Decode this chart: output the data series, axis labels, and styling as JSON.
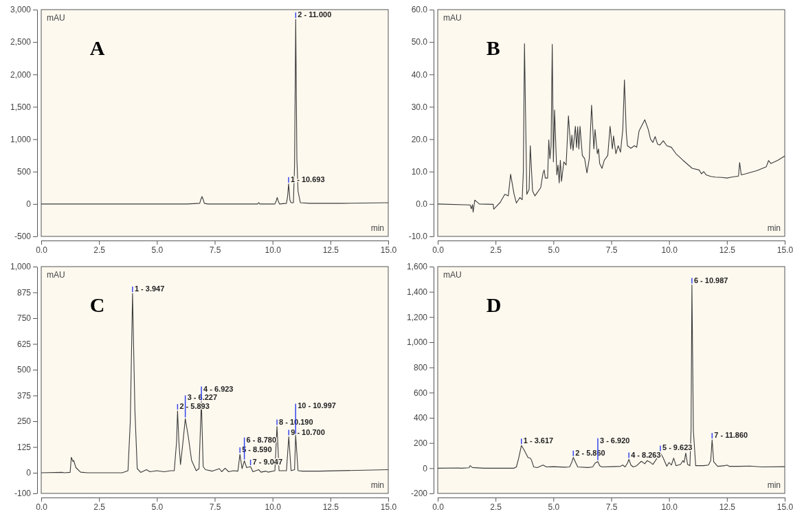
{
  "chart_data": [
    {
      "type": "line",
      "title": "A",
      "xlabel": "min",
      "ylabel": "mAU",
      "color": "#3a3a3a",
      "marker": "none",
      "grid": false,
      "x": [
        0,
        1,
        1.1,
        4,
        6.3,
        6.85,
        6.9,
        6.95,
        7.0,
        7.05,
        7.2,
        8.9,
        9.35,
        9.4,
        9.45,
        9.5,
        10.1,
        10.15,
        10.2,
        10.25,
        10.3,
        10.6,
        10.65,
        10.693,
        10.75,
        10.8,
        10.9,
        10.95,
        11.0,
        11.05,
        11.1,
        11.2,
        11.6,
        13,
        15
      ],
      "values": [
        0,
        0,
        0,
        0,
        0,
        10,
        70,
        115,
        70,
        10,
        0,
        0,
        0,
        20,
        0,
        0,
        0,
        40,
        100,
        40,
        0,
        10,
        120,
        310,
        60,
        20,
        20,
        600,
        2850,
        700,
        200,
        20,
        10,
        10,
        20
      ],
      "xlim": [
        0,
        15
      ],
      "ylim": [
        -500,
        3000
      ],
      "xticks": [
        {
          "value": 0,
          "label": "0.0"
        },
        {
          "value": 2.5,
          "label": "2.5"
        },
        {
          "value": 5,
          "label": "5.0"
        },
        {
          "value": 7.5,
          "label": "7.5"
        },
        {
          "value": 10,
          "label": "10.0"
        },
        {
          "value": 12.5,
          "label": "12.5"
        },
        {
          "value": 15,
          "label": "15.0"
        }
      ],
      "yticks": [
        -500,
        0,
        500,
        {
          "value": 1000,
          "label": "1,000"
        },
        {
          "value": 1500,
          "label": "1,500"
        },
        {
          "value": 2000,
          "label": "2,000"
        },
        {
          "value": 2500,
          "label": "2,500"
        },
        {
          "value": 3000,
          "label": "3,000"
        }
      ],
      "annotations": [
        {
          "text": "2 - 11.000",
          "x": 11.0,
          "y": 2850
        },
        {
          "text": "1 - 10.693",
          "x": 10.693,
          "y": 310
        }
      ]
    },
    {
      "type": "line",
      "title": "B",
      "xlabel": "min",
      "ylabel": "mAU",
      "color": "#3a3a3a",
      "marker": "none",
      "grid": false,
      "x": [
        0,
        1.4,
        1.45,
        1.5,
        1.53,
        1.6,
        1.8,
        2.4,
        2.42,
        2.5,
        2.7,
        2.9,
        3.05,
        3.15,
        3.3,
        3.4,
        3.55,
        3.65,
        3.7,
        3.75,
        3.85,
        3.95,
        4.0,
        4.1,
        4.2,
        4.3,
        4.45,
        4.55,
        4.6,
        4.65,
        4.75,
        4.8,
        4.85,
        4.9,
        4.95,
        5.0,
        5.05,
        5.15,
        5.2,
        5.25,
        5.3,
        5.35,
        5.45,
        5.55,
        5.65,
        5.75,
        5.8,
        5.85,
        5.95,
        6.0,
        6.05,
        6.1,
        6.15,
        6.25,
        6.35,
        6.45,
        6.55,
        6.65,
        6.75,
        6.8,
        6.9,
        6.95,
        7.0,
        7.1,
        7.2,
        7.35,
        7.45,
        7.55,
        7.6,
        7.7,
        7.8,
        7.9,
        8.0,
        8.07,
        8.15,
        8.2,
        8.35,
        8.5,
        8.6,
        8.7,
        8.95,
        9.1,
        9.2,
        9.3,
        9.4,
        9.5,
        9.6,
        9.75,
        9.9,
        10.1,
        10.3,
        10.6,
        11.0,
        11.3,
        11.4,
        11.5,
        11.6,
        11.8,
        12.0,
        12.3,
        12.5,
        12.7,
        13.0,
        13.05,
        13.12,
        13.3,
        13.8,
        14.2,
        14.3,
        14.4,
        14.7,
        15
      ],
      "values": [
        0,
        -0.3,
        -1.5,
        -0.2,
        -2.5,
        1.2,
        0,
        -0.1,
        -1.6,
        -1.0,
        0.5,
        3,
        2.5,
        9.2,
        3,
        0.3,
        2,
        1.3,
        10,
        49.5,
        3,
        4.5,
        18,
        4,
        2.5,
        3.5,
        5,
        9.5,
        10.5,
        8,
        8,
        19.8,
        14,
        18,
        49.3,
        13,
        29,
        9,
        12,
        6.5,
        13.5,
        7,
        13,
        12,
        27.2,
        17,
        21.3,
        16.5,
        24,
        17.5,
        23.8,
        17,
        24,
        15,
        14,
        9.6,
        14,
        30.5,
        17,
        23,
        15.5,
        17,
        12.5,
        11,
        13.5,
        15,
        24,
        17,
        21,
        15.5,
        18,
        16,
        23,
        38.3,
        22,
        18,
        17.2,
        18,
        17.5,
        22.5,
        26,
        23,
        20,
        19,
        20.8,
        18.5,
        18.2,
        19.5,
        18,
        17.5,
        15.5,
        13.5,
        11,
        10.5,
        9.3,
        10,
        9,
        8.5,
        8.3,
        8.2,
        8,
        8.3,
        8.6,
        12.8,
        9,
        9.3,
        10.3,
        11.5,
        13.4,
        12.5,
        13.5,
        14.8
      ],
      "xlim": [
        0,
        15
      ],
      "ylim": [
        -10,
        60
      ],
      "xticks": [
        {
          "value": 0,
          "label": "0.0"
        },
        {
          "value": 2.5,
          "label": "2.5"
        },
        {
          "value": 5,
          "label": "5.0"
        },
        {
          "value": 7.5,
          "label": "7.5"
        },
        {
          "value": 10,
          "label": "10.0"
        },
        {
          "value": 12.5,
          "label": "12.5"
        },
        {
          "value": 15,
          "label": "15.0"
        }
      ],
      "yticks": [
        {
          "value": -10,
          "label": "-10.0"
        },
        {
          "value": 0,
          "label": "0.0"
        },
        {
          "value": 10,
          "label": "10.0"
        },
        {
          "value": 20,
          "label": "20.0"
        },
        {
          "value": 30,
          "label": "30.0"
        },
        {
          "value": 40,
          "label": "40.0"
        },
        {
          "value": 50,
          "label": "50.0"
        },
        {
          "value": 60,
          "label": "60.0"
        }
      ]
    },
    {
      "type": "line",
      "title": "C",
      "xlabel": "min",
      "ylabel": "mAU",
      "color": "#3a3a3a",
      "marker": "none",
      "grid": false,
      "x": [
        0,
        0.9,
        1.0,
        1.25,
        1.3,
        1.37,
        1.4,
        1.5,
        1.7,
        2,
        3.5,
        3.75,
        3.85,
        3.947,
        4.05,
        4.15,
        4.3,
        4.55,
        4.7,
        5.0,
        5.3,
        5.6,
        5.75,
        5.85,
        5.893,
        5.95,
        6.02,
        6.1,
        6.227,
        6.35,
        6.5,
        6.7,
        6.82,
        6.923,
        7.0,
        7.1,
        7.4,
        7.7,
        7.8,
        7.95,
        8.1,
        8.3,
        8.5,
        8.59,
        8.68,
        8.78,
        8.88,
        9.047,
        9.15,
        9.4,
        9.5,
        9.7,
        9.8,
        10.1,
        10.19,
        10.28,
        10.6,
        10.7,
        10.8,
        10.95,
        10.997,
        11.1,
        11.3,
        12,
        15
      ],
      "values": [
        0,
        2,
        0,
        2,
        75,
        55,
        60,
        25,
        3,
        0,
        0,
        10,
        250,
        870,
        300,
        20,
        2,
        15,
        5,
        10,
        5,
        10,
        10,
        150,
        300,
        150,
        40,
        120,
        262,
        180,
        60,
        10,
        20,
        345,
        30,
        15,
        8,
        20,
        5,
        22,
        5,
        10,
        8,
        90,
        20,
        58,
        25,
        30,
        5,
        15,
        3,
        8,
        3,
        10,
        225,
        10,
        10,
        175,
        10,
        15,
        182,
        10,
        8,
        8,
        15
      ],
      "xlim": [
        0,
        15
      ],
      "ylim": [
        -100,
        1000
      ],
      "xticks": [
        {
          "value": 0,
          "label": "0.0"
        },
        {
          "value": 2.5,
          "label": "2.5"
        },
        {
          "value": 5,
          "label": "5.0"
        },
        {
          "value": 7.5,
          "label": "7.5"
        },
        {
          "value": 10,
          "label": "10.0"
        },
        {
          "value": 12.5,
          "label": "12.5"
        },
        {
          "value": 15,
          "label": "15.0"
        }
      ],
      "yticks": [
        -100,
        0,
        125,
        250,
        375,
        500,
        625,
        750,
        875,
        {
          "value": 1000,
          "label": "1,000"
        }
      ],
      "annotations": [
        {
          "text": "1 - 3.947",
          "x": 3.947,
          "y": 870
        },
        {
          "text": "2 - 5.893",
          "x": 5.893,
          "y": 300
        },
        {
          "text": "3 - 6.227",
          "x": 6.227,
          "y": 262
        },
        {
          "text": "4 - 6.923",
          "x": 6.923,
          "y": 345
        },
        {
          "text": "5 - 8.590",
          "x": 8.59,
          "y": 90
        },
        {
          "text": "6 - 8.780",
          "x": 8.78,
          "y": 58
        },
        {
          "text": "7 - 9.047",
          "x": 9.047,
          "y": 30
        },
        {
          "text": "8 - 10.190",
          "x": 10.19,
          "y": 225
        },
        {
          "text": "9 - 10.700",
          "x": 10.7,
          "y": 175
        },
        {
          "text": "10 - 10.997",
          "x": 10.997,
          "y": 182
        }
      ]
    },
    {
      "type": "line",
      "title": "D",
      "xlabel": "min",
      "ylabel": "mAU",
      "color": "#3a3a3a",
      "marker": "none",
      "grid": false,
      "x": [
        0,
        0.9,
        1.0,
        1.35,
        1.4,
        1.5,
        2,
        3.3,
        3.4,
        3.5,
        3.617,
        3.75,
        3.9,
        4.0,
        4.05,
        4.15,
        4.3,
        4.55,
        4.7,
        5.0,
        5.5,
        5.7,
        5.8,
        5.86,
        5.95,
        6.05,
        6.5,
        6.7,
        6.8,
        6.92,
        7.0,
        7.1,
        7.5,
        7.9,
        8.0,
        8.1,
        8.2,
        8.263,
        8.35,
        8.45,
        8.6,
        8.8,
        8.95,
        9.05,
        9.2,
        9.3,
        9.5,
        9.623,
        9.75,
        9.9,
        10.0,
        10.1,
        10.2,
        10.3,
        10.5,
        10.6,
        10.65,
        10.72,
        10.8,
        10.9,
        10.95,
        10.987,
        11.05,
        11.15,
        11.5,
        11.7,
        11.8,
        11.86,
        11.93,
        12.1,
        12.4,
        12.5,
        12.6,
        13,
        13.5,
        14,
        15
      ],
      "values": [
        0,
        2,
        0,
        3,
        20,
        5,
        0,
        0,
        10,
        80,
        180,
        140,
        85,
        80,
        65,
        10,
        5,
        25,
        10,
        12,
        8,
        10,
        50,
        85,
        50,
        10,
        5,
        10,
        40,
        52,
        20,
        10,
        12,
        15,
        25,
        10,
        40,
        70,
        25,
        10,
        20,
        55,
        35,
        60,
        45,
        30,
        85,
        125,
        80,
        15,
        45,
        25,
        80,
        20,
        30,
        60,
        45,
        120,
        30,
        20,
        300,
        1455,
        300,
        20,
        20,
        25,
        60,
        225,
        50,
        15,
        20,
        25,
        15,
        15,
        17,
        10,
        12
      ],
      "xlim": [
        0,
        15
      ],
      "ylim": [
        -200,
        1600
      ],
      "xticks": [
        {
          "value": 0,
          "label": "0.0"
        },
        {
          "value": 2.5,
          "label": "2.5"
        },
        {
          "value": 5,
          "label": "5.0"
        },
        {
          "value": 7.5,
          "label": "7.5"
        },
        {
          "value": 10,
          "label": "10.0"
        },
        {
          "value": 12.5,
          "label": "12.5"
        },
        {
          "value": 15,
          "label": "15.0"
        }
      ],
      "yticks": [
        -200,
        0,
        200,
        400,
        600,
        800,
        {
          "value": 1000,
          "label": "1,000"
        },
        {
          "value": 1200,
          "label": "1,200"
        },
        {
          "value": 1400,
          "label": "1,400"
        },
        {
          "value": 1600,
          "label": "1,600"
        }
      ],
      "annotations": [
        {
          "text": "1 - 3.617",
          "x": 3.617,
          "y": 180
        },
        {
          "text": "2 - 5.860",
          "x": 5.86,
          "y": 85
        },
        {
          "text": "3 - 6.920",
          "x": 6.92,
          "y": 52
        },
        {
          "text": "4 - 8.263",
          "x": 8.263,
          "y": 70
        },
        {
          "text": "5 - 9.623",
          "x": 9.623,
          "y": 125
        },
        {
          "text": "6 - 10.987",
          "x": 10.987,
          "y": 1455
        },
        {
          "text": "7 - 11.860",
          "x": 11.86,
          "y": 225
        }
      ]
    }
  ]
}
